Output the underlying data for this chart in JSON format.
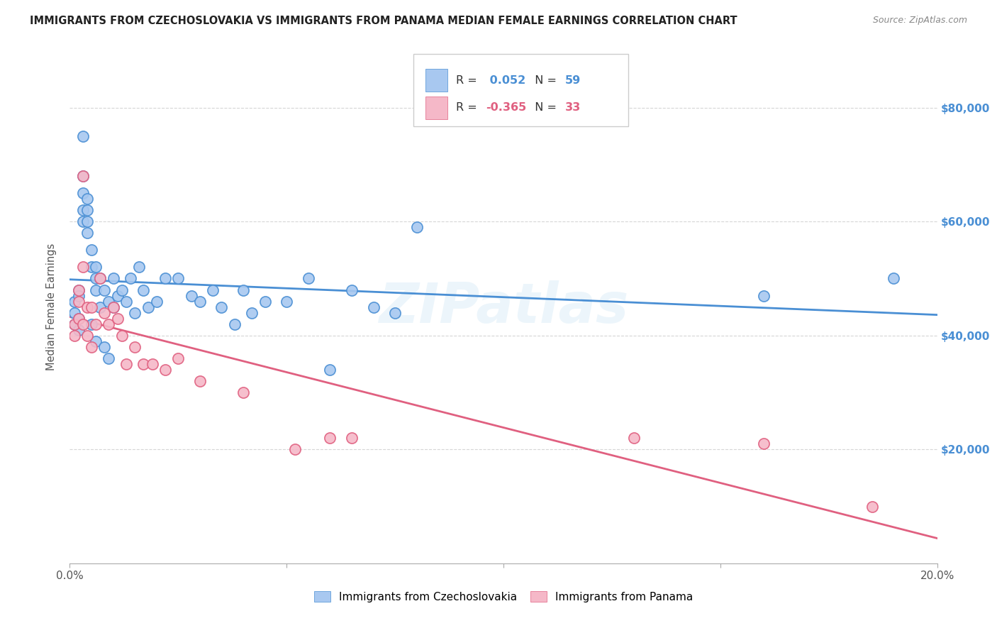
{
  "title": "IMMIGRANTS FROM CZECHOSLOVAKIA VS IMMIGRANTS FROM PANAMA MEDIAN FEMALE EARNINGS CORRELATION CHART",
  "source": "Source: ZipAtlas.com",
  "ylabel": "Median Female Earnings",
  "background_color": "#ffffff",
  "blue_color": "#a8c8f0",
  "pink_color": "#f5b8c8",
  "blue_line_color": "#4a8fd4",
  "pink_line_color": "#e06080",
  "R_blue": 0.052,
  "N_blue": 59,
  "R_pink": -0.365,
  "N_pink": 33,
  "xlim": [
    0.0,
    0.2
  ],
  "ylim": [
    0,
    90000
  ],
  "yticks": [
    20000,
    40000,
    60000,
    80000
  ],
  "ytick_labels": [
    "$20,000",
    "$40,000",
    "$60,000",
    "$80,000"
  ],
  "blue_x": [
    0.001,
    0.001,
    0.001,
    0.002,
    0.002,
    0.002,
    0.002,
    0.003,
    0.003,
    0.003,
    0.003,
    0.003,
    0.004,
    0.004,
    0.004,
    0.004,
    0.005,
    0.005,
    0.005,
    0.006,
    0.006,
    0.006,
    0.006,
    0.007,
    0.007,
    0.008,
    0.008,
    0.009,
    0.009,
    0.01,
    0.01,
    0.011,
    0.012,
    0.013,
    0.014,
    0.015,
    0.016,
    0.017,
    0.018,
    0.02,
    0.022,
    0.025,
    0.028,
    0.03,
    0.033,
    0.035,
    0.038,
    0.04,
    0.042,
    0.045,
    0.05,
    0.055,
    0.06,
    0.065,
    0.07,
    0.075,
    0.08,
    0.16,
    0.19
  ],
  "blue_y": [
    46000,
    44000,
    42000,
    48000,
    47000,
    43000,
    41000,
    75000,
    68000,
    65000,
    62000,
    60000,
    64000,
    62000,
    60000,
    58000,
    55000,
    52000,
    42000,
    52000,
    50000,
    48000,
    39000,
    50000,
    45000,
    48000,
    38000,
    46000,
    36000,
    50000,
    45000,
    47000,
    48000,
    46000,
    50000,
    44000,
    52000,
    48000,
    45000,
    46000,
    50000,
    50000,
    47000,
    46000,
    48000,
    45000,
    42000,
    48000,
    44000,
    46000,
    46000,
    50000,
    34000,
    48000,
    45000,
    44000,
    59000,
    47000,
    50000
  ],
  "pink_x": [
    0.001,
    0.001,
    0.002,
    0.002,
    0.002,
    0.003,
    0.003,
    0.003,
    0.004,
    0.004,
    0.005,
    0.005,
    0.006,
    0.007,
    0.008,
    0.009,
    0.01,
    0.011,
    0.012,
    0.013,
    0.015,
    0.017,
    0.019,
    0.022,
    0.025,
    0.03,
    0.04,
    0.052,
    0.06,
    0.065,
    0.13,
    0.16,
    0.185
  ],
  "pink_y": [
    42000,
    40000,
    48000,
    46000,
    43000,
    68000,
    52000,
    42000,
    45000,
    40000,
    45000,
    38000,
    42000,
    50000,
    44000,
    42000,
    45000,
    43000,
    40000,
    35000,
    38000,
    35000,
    35000,
    34000,
    36000,
    32000,
    30000,
    20000,
    22000,
    22000,
    22000,
    21000,
    10000
  ]
}
